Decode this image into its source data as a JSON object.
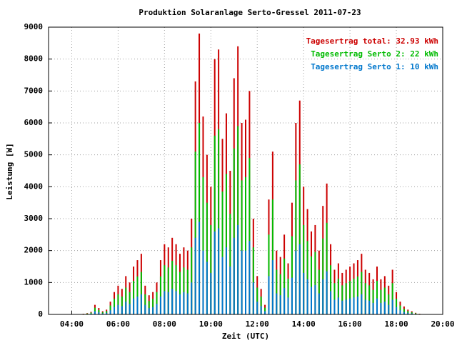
{
  "chart_data": {
    "type": "bar",
    "title": "Produktion Solaranlage Serto-Gressel 2011-07-23",
    "xlabel": "Zeit (UTC)",
    "ylabel": "Leistung [W]",
    "x": [
      270,
      280,
      290,
      300,
      310,
      320,
      330,
      340,
      350,
      360,
      370,
      380,
      390,
      400,
      410,
      420,
      430,
      440,
      450,
      460,
      470,
      480,
      490,
      500,
      510,
      520,
      530,
      540,
      550,
      560,
      570,
      580,
      590,
      600,
      610,
      620,
      630,
      640,
      650,
      660,
      670,
      680,
      690,
      700,
      710,
      720,
      730,
      740,
      750,
      760,
      770,
      780,
      790,
      800,
      810,
      820,
      830,
      840,
      850,
      860,
      870,
      880,
      890,
      900,
      910,
      920,
      930,
      940,
      950,
      960,
      970,
      980,
      990,
      1000,
      1010,
      1020,
      1030,
      1040,
      1050,
      1060,
      1070,
      1080,
      1090,
      1100,
      1110,
      1120,
      1130,
      1140
    ],
    "series": [
      {
        "name": "Tagesertrag total: 32.93 kWh",
        "color": "#cc0000",
        "values": [
          20,
          40,
          80,
          300,
          200,
          100,
          150,
          400,
          700,
          900,
          800,
          1200,
          1000,
          1500,
          1700,
          1900,
          900,
          600,
          700,
          1000,
          1700,
          2200,
          2100,
          2400,
          2200,
          1900,
          2100,
          2000,
          3000,
          7300,
          8800,
          6200,
          5000,
          4000,
          8000,
          8300,
          5500,
          6300,
          4500,
          7400,
          8400,
          6000,
          6100,
          7000,
          3000,
          1200,
          800,
          300,
          3600,
          5100,
          2000,
          1800,
          2500,
          1600,
          3500,
          6000,
          6700,
          4000,
          3300,
          2600,
          2800,
          2000,
          3400,
          4100,
          2200,
          1400,
          1600,
          1300,
          1400,
          1500,
          1600,
          1700,
          1900,
          1400,
          1300,
          1100,
          1500,
          1100,
          1200,
          900,
          1400,
          700,
          400,
          250,
          150,
          100,
          50,
          20
        ]
      },
      {
        "name": "Tagesertrag Serto 2: 22 kWh",
        "color": "#00bb00",
        "values": [
          14,
          28,
          56,
          210,
          140,
          70,
          105,
          280,
          490,
          630,
          560,
          840,
          700,
          1050,
          1190,
          1330,
          630,
          420,
          490,
          700,
          1190,
          1540,
          1470,
          1680,
          1540,
          1330,
          1470,
          1400,
          2100,
          5100,
          6000,
          4300,
          3500,
          2800,
          5600,
          5800,
          3850,
          4400,
          3150,
          5200,
          5900,
          4200,
          4300,
          4900,
          2100,
          840,
          560,
          210,
          2500,
          3600,
          1400,
          1260,
          1750,
          1120,
          2450,
          4200,
          4700,
          2800,
          2300,
          1820,
          1960,
          1400,
          2380,
          2870,
          1540,
          980,
          1120,
          910,
          980,
          1050,
          1120,
          1190,
          1330,
          980,
          910,
          770,
          1050,
          770,
          840,
          630,
          980,
          490,
          280,
          175,
          105,
          70,
          35,
          14
        ]
      },
      {
        "name": "Tagesertrag Serto 1: 10 kWh",
        "color": "#0077cc",
        "values": [
          7,
          13,
          26,
          100,
          66,
          33,
          50,
          130,
          230,
          300,
          260,
          400,
          330,
          500,
          560,
          630,
          300,
          200,
          230,
          330,
          560,
          730,
          700,
          800,
          730,
          630,
          700,
          660,
          1000,
          2400,
          2900,
          2000,
          1650,
          1300,
          2600,
          2700,
          1800,
          2100,
          1500,
          2400,
          2800,
          2000,
          2000,
          2300,
          1000,
          400,
          260,
          100,
          1200,
          1700,
          660,
          600,
          830,
          530,
          1150,
          2000,
          2200,
          1300,
          1100,
          860,
          920,
          660,
          1100,
          1350,
          730,
          460,
          530,
          430,
          460,
          500,
          530,
          560,
          630,
          460,
          430,
          360,
          500,
          360,
          400,
          300,
          460,
          230,
          130,
          80,
          50,
          33,
          16,
          7
        ]
      }
    ],
    "xlim": [
      180,
      1200
    ],
    "xticks": [
      {
        "value": 240,
        "label": "04:00"
      },
      {
        "value": 360,
        "label": "06:00"
      },
      {
        "value": 480,
        "label": "08:00"
      },
      {
        "value": 600,
        "label": "10:00"
      },
      {
        "value": 720,
        "label": "12:00"
      },
      {
        "value": 840,
        "label": "14:00"
      },
      {
        "value": 960,
        "label": "16:00"
      },
      {
        "value": 1080,
        "label": "18:00"
      },
      {
        "value": 1200,
        "label": "20:00"
      }
    ],
    "ylim": [
      0,
      9000
    ],
    "yticks": [
      0,
      1000,
      2000,
      3000,
      4000,
      5000,
      6000,
      7000,
      8000,
      9000
    ],
    "grid": true,
    "legend": "upper right"
  }
}
